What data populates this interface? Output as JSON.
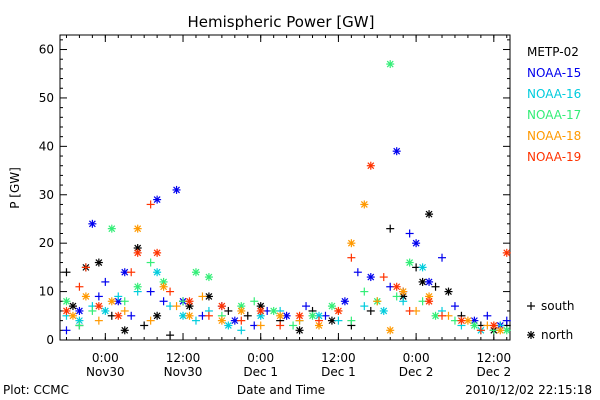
{
  "chart_data": {
    "type": "scatter",
    "title": "Hemispheric Power [GW]",
    "ylabel": "P [GW]",
    "xlabel": "Date and Time",
    "ylim": [
      0,
      63
    ],
    "yticks": [
      0,
      10,
      20,
      30,
      40,
      50,
      60
    ],
    "x_units": "hours since 2010-11-30 00:00 UT",
    "xlim": [
      -7,
      62.5
    ],
    "xticks": [
      {
        "x": 0,
        "line1": "0:00",
        "line2": "Nov30"
      },
      {
        "x": 12,
        "line1": "12:00",
        "line2": "Nov30"
      },
      {
        "x": 24,
        "line1": "0:00",
        "line2": "Dec 1"
      },
      {
        "x": 36,
        "line1": "12:00",
        "line2": "Dec 1"
      },
      {
        "x": 48,
        "line1": "0:00",
        "line2": "Dec 2"
      },
      {
        "x": 60,
        "line1": "12:00",
        "line2": "Dec 2"
      }
    ],
    "grid": false,
    "legend_position": "right",
    "marker_legend": [
      {
        "symbol": "+",
        "label": "south"
      },
      {
        "symbol": "*",
        "label": "north"
      }
    ],
    "series": [
      {
        "name": "METP-02",
        "color": "#000000",
        "points": [
          [
            -6,
            14,
            "+"
          ],
          [
            -5,
            7,
            "*"
          ],
          [
            -4,
            3,
            "+"
          ],
          [
            -3,
            15,
            "*"
          ],
          [
            -1,
            16,
            "*"
          ],
          [
            1,
            5,
            "+"
          ],
          [
            3,
            2,
            "*"
          ],
          [
            5,
            19,
            "*"
          ],
          [
            6,
            3,
            "+"
          ],
          [
            8,
            5,
            "*"
          ],
          [
            10,
            1,
            "+"
          ],
          [
            13,
            7,
            "*"
          ],
          [
            16,
            9,
            "*"
          ],
          [
            19,
            6,
            "+"
          ],
          [
            22,
            5,
            "+"
          ],
          [
            24,
            7,
            "*"
          ],
          [
            27,
            4,
            "+"
          ],
          [
            30,
            2,
            "*"
          ],
          [
            32,
            6,
            "+"
          ],
          [
            35,
            4,
            "*"
          ],
          [
            38,
            3,
            "+"
          ],
          [
            41,
            6,
            "+"
          ],
          [
            44,
            23,
            "+"
          ],
          [
            46,
            9,
            "*"
          ],
          [
            48,
            15,
            "+"
          ],
          [
            49,
            12,
            "*"
          ],
          [
            50,
            26,
            "*"
          ],
          [
            51,
            11,
            "+"
          ],
          [
            53,
            10,
            "*"
          ],
          [
            55,
            5,
            "+"
          ],
          [
            58,
            3,
            "+"
          ],
          [
            60,
            2,
            "*"
          ],
          [
            62,
            3,
            "+"
          ]
        ]
      },
      {
        "name": "NOAA-15",
        "color": "#0000ee",
        "points": [
          [
            -6,
            2,
            "+"
          ],
          [
            -4,
            6,
            "*"
          ],
          [
            -2,
            24,
            "*"
          ],
          [
            -1,
            9,
            "+"
          ],
          [
            0,
            12,
            "+"
          ],
          [
            2,
            8,
            "*"
          ],
          [
            3,
            14,
            "*"
          ],
          [
            4,
            5,
            "+"
          ],
          [
            7,
            10,
            "+"
          ],
          [
            8,
            29,
            "*"
          ],
          [
            9,
            8,
            "+"
          ],
          [
            11,
            31,
            "*"
          ],
          [
            12,
            8,
            "*"
          ],
          [
            15,
            5,
            "+"
          ],
          [
            18,
            7,
            "+"
          ],
          [
            20,
            4,
            "*"
          ],
          [
            23,
            3,
            "+"
          ],
          [
            25,
            6,
            "+"
          ],
          [
            28,
            5,
            "*"
          ],
          [
            31,
            7,
            "+"
          ],
          [
            34,
            5,
            "+"
          ],
          [
            37,
            8,
            "*"
          ],
          [
            39,
            14,
            "+"
          ],
          [
            41,
            13,
            "*"
          ],
          [
            44,
            11,
            "+"
          ],
          [
            45,
            39,
            "*"
          ],
          [
            46,
            10,
            "+"
          ],
          [
            47,
            22,
            "+"
          ],
          [
            48,
            20,
            "*"
          ],
          [
            50,
            12,
            "*"
          ],
          [
            52,
            17,
            "+"
          ],
          [
            54,
            7,
            "+"
          ],
          [
            57,
            4,
            "*"
          ],
          [
            59,
            5,
            "+"
          ],
          [
            61,
            3,
            "*"
          ],
          [
            62,
            4,
            "+"
          ]
        ]
      },
      {
        "name": "NOAA-16",
        "color": "#00ccdd",
        "points": [
          [
            -6,
            5,
            "+"
          ],
          [
            -4,
            4,
            "*"
          ],
          [
            -2,
            7,
            "+"
          ],
          [
            0,
            6,
            "*"
          ],
          [
            2,
            9,
            "+"
          ],
          [
            5,
            10,
            "+"
          ],
          [
            8,
            14,
            "*"
          ],
          [
            10,
            7,
            "+"
          ],
          [
            12,
            5,
            "*"
          ],
          [
            14,
            4,
            "+"
          ],
          [
            16,
            6,
            "+"
          ],
          [
            19,
            3,
            "*"
          ],
          [
            21,
            2,
            "+"
          ],
          [
            24,
            5,
            "*"
          ],
          [
            27,
            6,
            "+"
          ],
          [
            30,
            4,
            "+"
          ],
          [
            33,
            5,
            "*"
          ],
          [
            36,
            4,
            "+"
          ],
          [
            40,
            7,
            "+"
          ],
          [
            43,
            6,
            "*"
          ],
          [
            46,
            8,
            "+"
          ],
          [
            49,
            15,
            "*"
          ],
          [
            52,
            6,
            "+"
          ],
          [
            55,
            3,
            "+"
          ],
          [
            58,
            2,
            "*"
          ],
          [
            61,
            3,
            "+"
          ]
        ]
      },
      {
        "name": "NOAA-17",
        "color": "#33ee77",
        "points": [
          [
            -6,
            8,
            "*"
          ],
          [
            -4,
            3,
            "+"
          ],
          [
            -2,
            6,
            "+"
          ],
          [
            1,
            23,
            "*"
          ],
          [
            3,
            8,
            "+"
          ],
          [
            5,
            11,
            "*"
          ],
          [
            7,
            16,
            "+"
          ],
          [
            9,
            12,
            "*"
          ],
          [
            12,
            8,
            "+"
          ],
          [
            14,
            14,
            "*"
          ],
          [
            16,
            13,
            "*"
          ],
          [
            18,
            5,
            "+"
          ],
          [
            21,
            7,
            "*"
          ],
          [
            23,
            8,
            "+"
          ],
          [
            26,
            6,
            "*"
          ],
          [
            29,
            3,
            "+"
          ],
          [
            32,
            5,
            "*"
          ],
          [
            35,
            7,
            "*"
          ],
          [
            38,
            4,
            "+"
          ],
          [
            40,
            10,
            "+"
          ],
          [
            42,
            8,
            "*"
          ],
          [
            44,
            57,
            "*"
          ],
          [
            45,
            9,
            "+"
          ],
          [
            47,
            16,
            "*"
          ],
          [
            49,
            8,
            "+"
          ],
          [
            51,
            5,
            "*"
          ],
          [
            54,
            4,
            "+"
          ],
          [
            57,
            3,
            "*"
          ],
          [
            60,
            2,
            "+"
          ],
          [
            62,
            2,
            "*"
          ]
        ]
      },
      {
        "name": "NOAA-18",
        "color": "#ff9900",
        "points": [
          [
            -5,
            5,
            "*"
          ],
          [
            -3,
            9,
            "*"
          ],
          [
            -1,
            4,
            "+"
          ],
          [
            1,
            8,
            "*"
          ],
          [
            3,
            6,
            "+"
          ],
          [
            5,
            23,
            "*"
          ],
          [
            7,
            4,
            "+"
          ],
          [
            9,
            11,
            "*"
          ],
          [
            11,
            7,
            "+"
          ],
          [
            13,
            5,
            "*"
          ],
          [
            15,
            9,
            "+"
          ],
          [
            18,
            4,
            "*"
          ],
          [
            21,
            6,
            "*"
          ],
          [
            24,
            3,
            "+"
          ],
          [
            27,
            5,
            "*"
          ],
          [
            30,
            4,
            "+"
          ],
          [
            33,
            3,
            "*"
          ],
          [
            36,
            6,
            "+"
          ],
          [
            38,
            20,
            "*"
          ],
          [
            40,
            28,
            "*"
          ],
          [
            42,
            8,
            "+"
          ],
          [
            44,
            2,
            "*"
          ],
          [
            46,
            10,
            "*"
          ],
          [
            48,
            6,
            "+"
          ],
          [
            50,
            9,
            "*"
          ],
          [
            53,
            5,
            "+"
          ],
          [
            56,
            4,
            "*"
          ],
          [
            59,
            3,
            "+"
          ],
          [
            61,
            2,
            "*"
          ]
        ]
      },
      {
        "name": "NOAA-19",
        "color": "#ff3300",
        "points": [
          [
            -6,
            6,
            "*"
          ],
          [
            -4,
            11,
            "+"
          ],
          [
            -3,
            15,
            "+"
          ],
          [
            -1,
            7,
            "*"
          ],
          [
            2,
            5,
            "*"
          ],
          [
            4,
            14,
            "+"
          ],
          [
            5,
            18,
            "*"
          ],
          [
            7,
            28,
            "+"
          ],
          [
            8,
            18,
            "*"
          ],
          [
            10,
            10,
            "+"
          ],
          [
            13,
            8,
            "*"
          ],
          [
            16,
            5,
            "+"
          ],
          [
            18,
            7,
            "*"
          ],
          [
            21,
            4,
            "+"
          ],
          [
            24,
            6,
            "*"
          ],
          [
            27,
            3,
            "+"
          ],
          [
            30,
            5,
            "*"
          ],
          [
            33,
            4,
            "+"
          ],
          [
            36,
            6,
            "*"
          ],
          [
            38,
            17,
            "+"
          ],
          [
            41,
            36,
            "*"
          ],
          [
            43,
            13,
            "+"
          ],
          [
            45,
            11,
            "*"
          ],
          [
            47,
            6,
            "+"
          ],
          [
            50,
            8,
            "*"
          ],
          [
            52,
            5,
            "+"
          ],
          [
            55,
            4,
            "*"
          ],
          [
            58,
            2,
            "+"
          ],
          [
            60,
            3,
            "*"
          ],
          [
            62,
            18,
            "*"
          ]
        ]
      }
    ]
  },
  "footer": {
    "left": "Plot: CCMC",
    "right": "2010/12/02 22:15:18"
  }
}
